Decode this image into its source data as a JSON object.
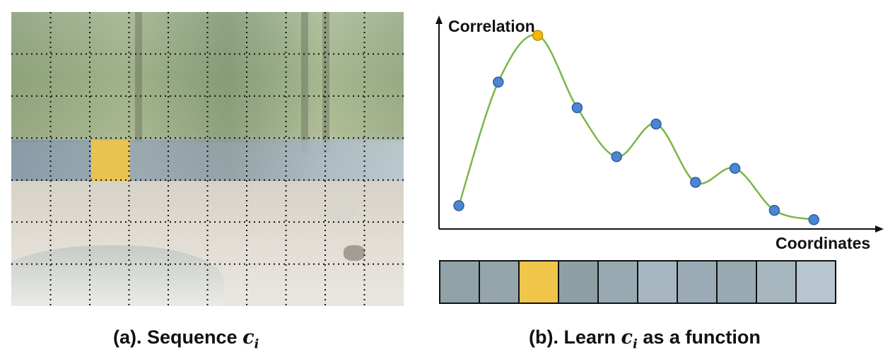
{
  "left_panel": {
    "grid": {
      "columns": 10,
      "rows": 7,
      "highlight_cell": {
        "col": 2,
        "row": 3
      }
    },
    "caption": {
      "prefix": "(a). Sequence ",
      "symbol": "c",
      "subscript": "i"
    }
  },
  "right_panel": {
    "chart_data": {
      "type": "line",
      "ylabel": "Correlation",
      "xlabel": "Coordinates",
      "x": [
        1,
        2,
        3,
        4,
        5,
        6,
        7,
        8,
        9,
        10
      ],
      "y": [
        0.1,
        0.63,
        0.83,
        0.52,
        0.31,
        0.45,
        0.2,
        0.26,
        0.08,
        0.04
      ],
      "highlight_index": 2,
      "colors": {
        "curve": "#7ab648",
        "point": "#4a86d3",
        "point_highlight": "#f5b800"
      }
    },
    "strip": {
      "cells": [
        {
          "color": "#8ea2a8"
        },
        {
          "color": "#95a6ab"
        },
        {
          "color": "#f0c64a"
        },
        {
          "color": "#8ea0a3"
        },
        {
          "color": "#97aab2"
        },
        {
          "color": "#a7b7c1"
        },
        {
          "color": "#9aabb5"
        },
        {
          "color": "#97a9b1"
        },
        {
          "color": "#a6b6bf"
        },
        {
          "color": "#b6c5ce"
        }
      ]
    },
    "caption": {
      "prefix": "(b). Learn ",
      "symbol": "c",
      "subscript": "i",
      "suffix": " as a function"
    }
  }
}
